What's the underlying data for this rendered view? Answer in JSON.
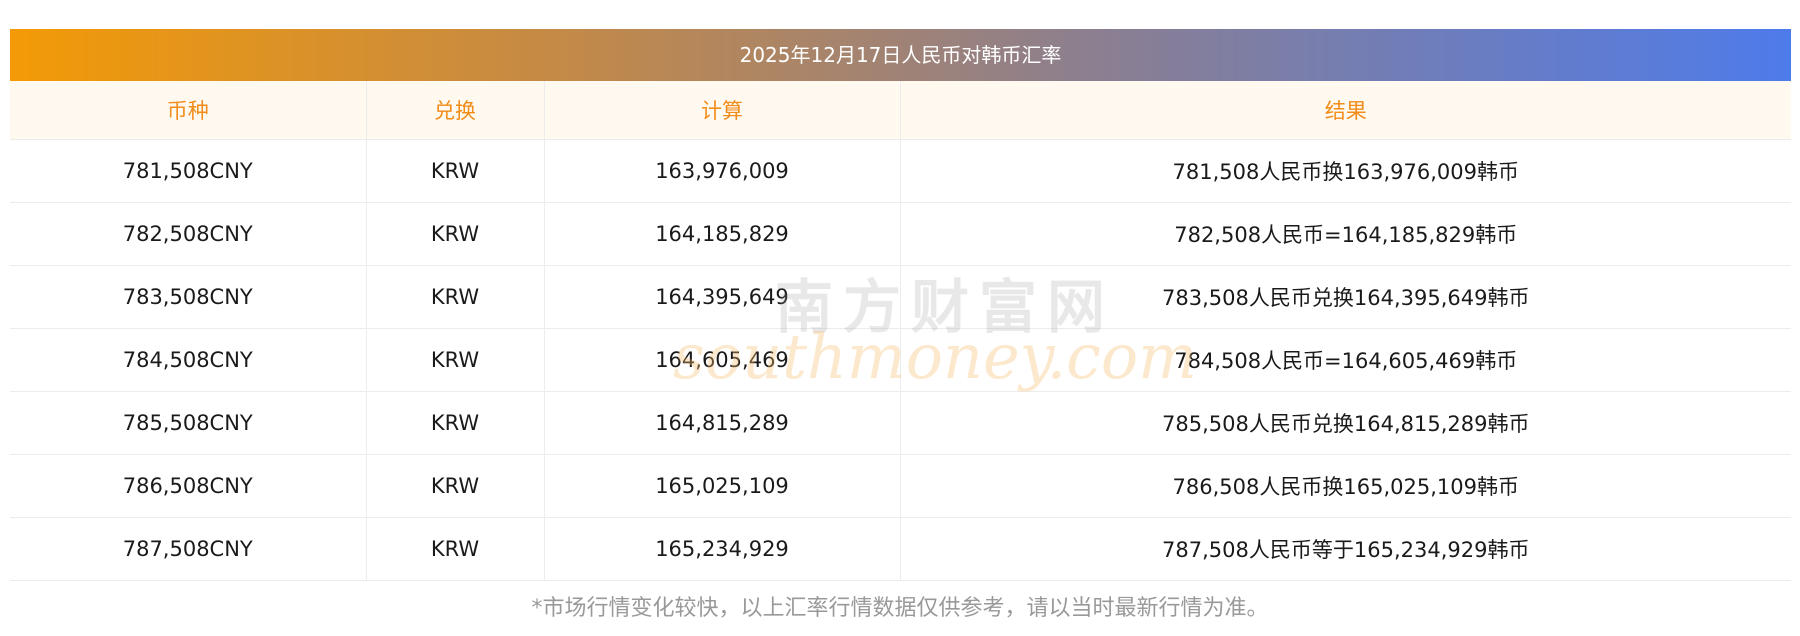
{
  "title": "2025年12月17日人民币对韩币汇率",
  "columns": [
    "币种",
    "兑换",
    "计算",
    "结果"
  ],
  "rows": [
    {
      "currency": "781,508CNY",
      "target": "KRW",
      "amount": "163,976,009",
      "result": "781,508人民币换163,976,009韩币"
    },
    {
      "currency": "782,508CNY",
      "target": "KRW",
      "amount": "164,185,829",
      "result": "782,508人民币=164,185,829韩币"
    },
    {
      "currency": "783,508CNY",
      "target": "KRW",
      "amount": "164,395,649",
      "result": "783,508人民币兑换164,395,649韩币"
    },
    {
      "currency": "784,508CNY",
      "target": "KRW",
      "amount": "164,605,469",
      "result": "784,508人民币=164,605,469韩币"
    },
    {
      "currency": "785,508CNY",
      "target": "KRW",
      "amount": "164,815,289",
      "result": "785,508人民币兑换164,815,289韩币"
    },
    {
      "currency": "786,508CNY",
      "target": "KRW",
      "amount": "165,025,109",
      "result": "786,508人民币换165,025,109韩币"
    },
    {
      "currency": "787,508CNY",
      "target": "KRW",
      "amount": "165,234,929",
      "result": "787,508人民币等于165,234,929韩币"
    }
  ],
  "watermark": {
    "cn": "南方财富网",
    "en": "southmoney.com"
  },
  "footnote": "*市场行情变化较快，以上汇率行情数据仅供参考，请以当时最新行情为准。",
  "colors": {
    "header_text": "#f28c1a",
    "gradient_start": "#f39a06",
    "gradient_end": "#4e7bea"
  }
}
